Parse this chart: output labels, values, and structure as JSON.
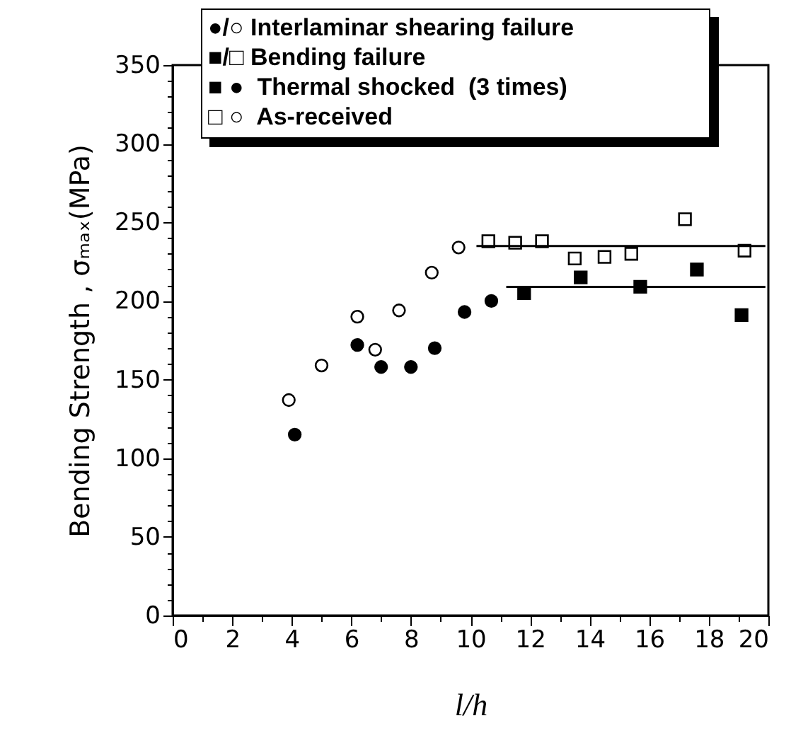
{
  "chart_data": {
    "type": "scatter",
    "xlabel": "l/h",
    "ylabel": "Bending Strength , σₘₐₓ(MPa)",
    "xlim": [
      0,
      20
    ],
    "ylim": [
      0,
      350
    ],
    "xticks": [
      0,
      {
        "value": 1,
        "label": null
      },
      2,
      {
        "value": 3,
        "label": null
      },
      4,
      {
        "value": 5,
        "label": null
      },
      6,
      {
        "value": 7,
        "label": null
      },
      8,
      {
        "value": 9,
        "label": null
      },
      10,
      {
        "value": 11,
        "label": null
      },
      12,
      {
        "value": 13,
        "label": null
      },
      14,
      {
        "value": 15,
        "label": null
      },
      16,
      {
        "value": 17,
        "label": null
      },
      18,
      {
        "value": 19,
        "label": null
      },
      20
    ],
    "yticks": [
      0,
      {
        "value": 10,
        "label": null
      },
      {
        "value": 20,
        "label": null
      },
      {
        "value": 30,
        "label": null
      },
      {
        "value": 40,
        "label": null
      },
      50,
      {
        "value": 60,
        "label": null
      },
      {
        "value": 70,
        "label": null
      },
      {
        "value": 80,
        "label": null
      },
      {
        "value": 90,
        "label": null
      },
      100,
      {
        "value": 110,
        "label": null
      },
      {
        "value": 120,
        "label": null
      },
      {
        "value": 130,
        "label": null
      },
      {
        "value": 140,
        "label": null
      },
      150,
      {
        "value": 160,
        "label": null
      },
      {
        "value": 170,
        "label": null
      },
      {
        "value": 180,
        "label": null
      },
      {
        "value": 190,
        "label": null
      },
      200,
      {
        "value": 210,
        "label": null
      },
      {
        "value": 220,
        "label": null
      },
      {
        "value": 230,
        "label": null
      },
      {
        "value": 240,
        "label": null
      },
      250,
      {
        "value": 260,
        "label": null
      },
      {
        "value": 270,
        "label": null
      },
      {
        "value": 280,
        "label": null
      },
      {
        "value": 290,
        "label": null
      },
      300,
      {
        "value": 310,
        "label": null
      },
      {
        "value": 320,
        "label": null
      },
      {
        "value": 330,
        "label": null
      },
      {
        "value": 340,
        "label": null
      },
      350
    ],
    "grid": false,
    "annotations": [
      "●/○ Interlaminar shearing failure",
      "■/□ Bending failure",
      "■ ●  Thermal shocked  (3 times)",
      "□ ○  As-received"
    ],
    "series": [
      {
        "marker": "circle",
        "color": "#ffffff",
        "x": [
          3.9,
          5.0,
          6.2,
          6.8,
          7.6,
          8.7,
          9.6
        ],
        "values": [
          137,
          159,
          190,
          169,
          194,
          218,
          234
        ]
      },
      {
        "marker": "circle",
        "color": "#000000",
        "x": [
          4.1,
          6.2,
          7.0,
          8.0,
          8.8,
          9.8,
          10.7
        ],
        "values": [
          115,
          172,
          158,
          158,
          170,
          193,
          200
        ]
      },
      {
        "marker": "square",
        "color": "#ffffff",
        "x": [
          10.6,
          11.5,
          12.4,
          13.5,
          14.5,
          15.4,
          17.2,
          19.2
        ],
        "values": [
          238,
          237,
          238,
          227,
          228,
          230,
          252,
          232
        ]
      },
      {
        "marker": "square",
        "color": "#000000",
        "x": [
          11.8,
          13.7,
          15.7,
          17.6,
          19.1
        ],
        "values": [
          205,
          215,
          209,
          220,
          191
        ]
      },
      {
        "type": "line",
        "marker": "none",
        "color": "#000000",
        "x": [
          10.2,
          19.9
        ],
        "values": [
          235,
          235
        ]
      },
      {
        "type": "line",
        "marker": "none",
        "color": "#000000",
        "x": [
          11.2,
          19.9
        ],
        "values": [
          209,
          209
        ]
      }
    ]
  }
}
